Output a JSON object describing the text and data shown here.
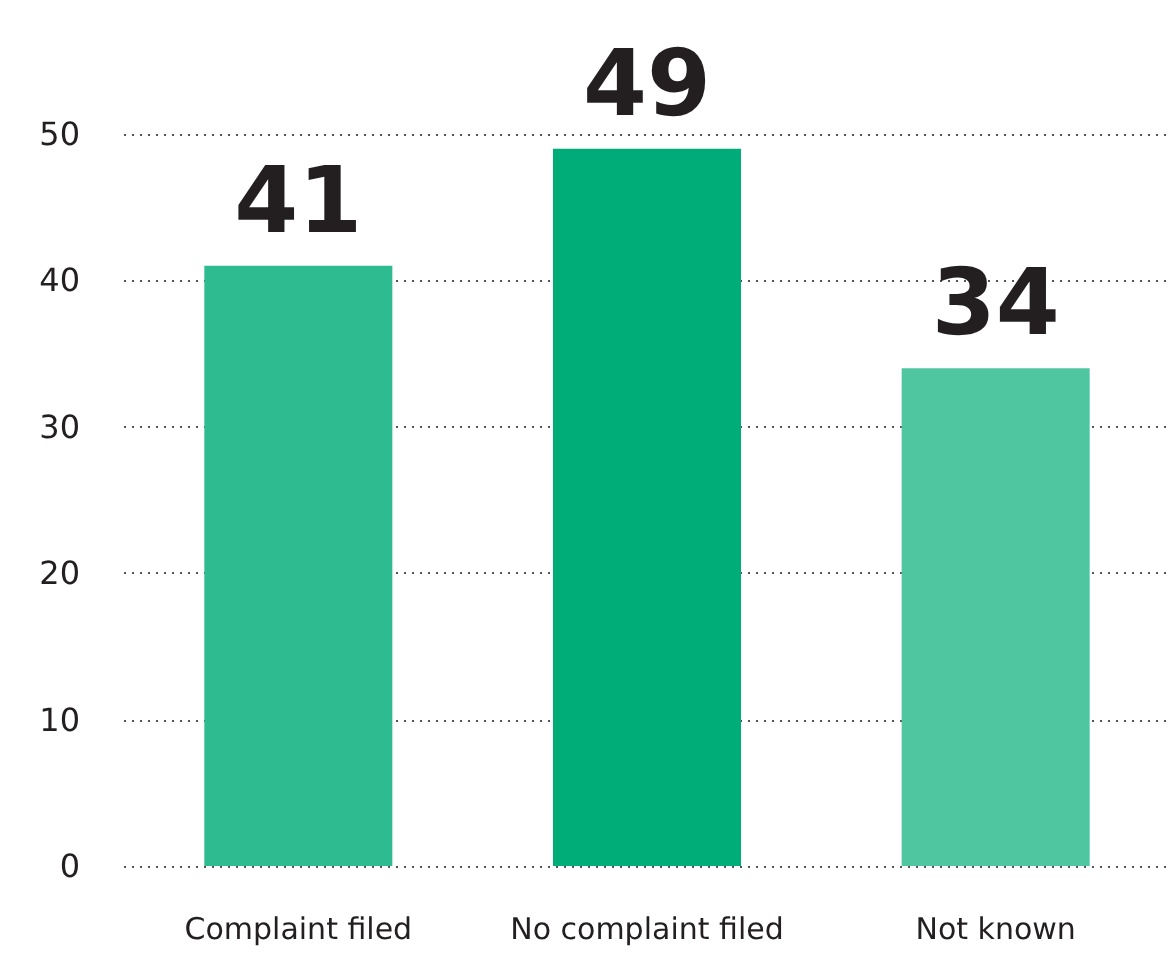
{
  "chart_data": {
    "type": "bar",
    "categories": [
      "Complaint filed",
      "No complaint filed",
      "Not known"
    ],
    "values": [
      41,
      49,
      34
    ],
    "colors": [
      "#2dbb8f",
      "#00ac78",
      "#4fc6a0"
    ],
    "ylim": [
      0,
      50
    ],
    "yticks": [
      0,
      10,
      20,
      30,
      40,
      50
    ],
    "grid": "y",
    "data_labels": true
  }
}
